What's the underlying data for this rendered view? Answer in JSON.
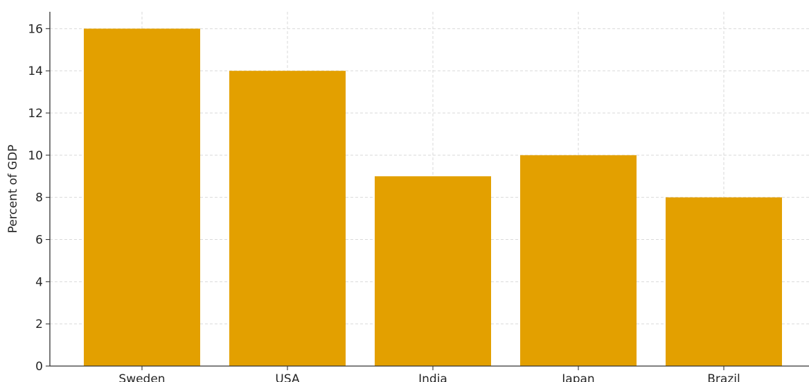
{
  "chart_data": {
    "type": "bar",
    "categories": [
      "Sweden",
      "USA",
      "India",
      "Japan",
      "Brazil"
    ],
    "values": [
      16,
      14,
      9,
      10,
      8
    ],
    "title": "",
    "xlabel": "",
    "ylabel": "Percent of GDP",
    "ylim": [
      0,
      16.8
    ],
    "yticks": [
      0,
      2,
      4,
      6,
      8,
      10,
      12,
      14,
      16
    ],
    "grid": true,
    "legend": "none",
    "colors": {
      "bar": "#E3A000",
      "grid": "#d9d9d9",
      "axis": "#333333",
      "text": "#262626"
    }
  }
}
